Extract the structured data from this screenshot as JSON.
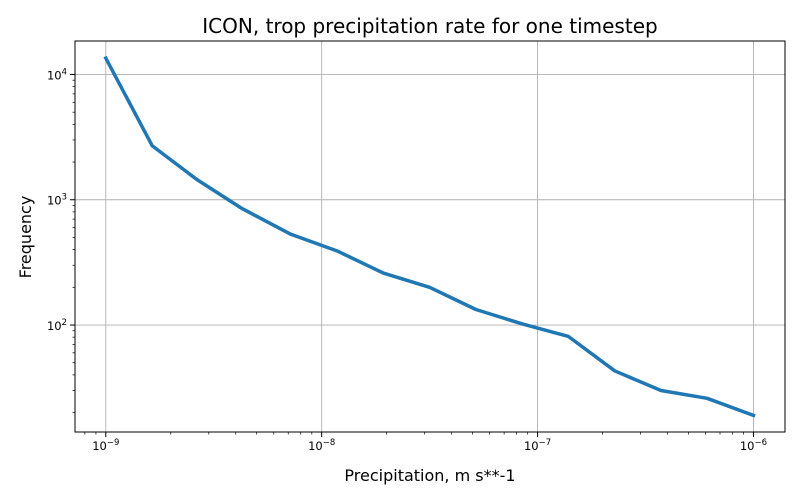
{
  "chart_data": {
    "type": "line",
    "title": "ICON, trop precipitation rate for one timestep",
    "xlabel": "Precipitation, m s**-1",
    "ylabel": "Frequency",
    "xscale": "log",
    "yscale": "log",
    "xlim": [
      7.2e-10,
      1.4e-06
    ],
    "ylim": [
      14,
      18500
    ],
    "grid": true,
    "color": "#1f77b4",
    "x_ticks": [
      {
        "base": "10",
        "exp": "−9",
        "value": 1e-09
      },
      {
        "base": "10",
        "exp": "−8",
        "value": 1e-08
      },
      {
        "base": "10",
        "exp": "−7",
        "value": 1e-07
      },
      {
        "base": "10",
        "exp": "−6",
        "value": 1e-06
      }
    ],
    "y_ticks": [
      {
        "base": "10",
        "exp": "2",
        "value": 100
      },
      {
        "base": "10",
        "exp": "3",
        "value": 1000
      },
      {
        "base": "10",
        "exp": "4",
        "value": 10000
      }
    ],
    "series": [
      {
        "x": [
          1e-09,
          1.64e-09,
          2.64e-09,
          4.28e-09,
          7.2e-09,
          1.18e-08,
          1.93e-08,
          3.16e-08,
          5.18e-08,
          8.5e-08,
          1.39e-07,
          2.28e-07,
          3.73e-07,
          6.1e-07,
          1e-06
        ],
        "y": [
          13500,
          2700,
          1450,
          850,
          530,
          390,
          260,
          200,
          133,
          102,
          81,
          43,
          30,
          26,
          19
        ]
      }
    ]
  }
}
